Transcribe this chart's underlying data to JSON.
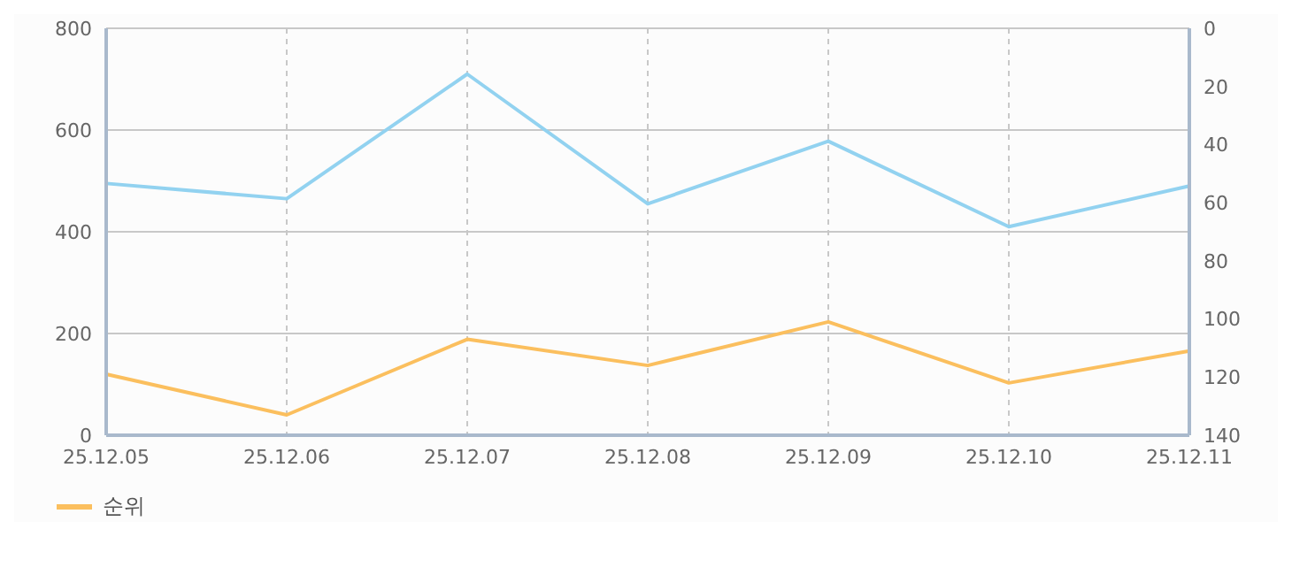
{
  "chart_data": {
    "type": "line",
    "categories": [
      "25.12.05",
      "25.12.06",
      "25.12.07",
      "25.12.08",
      "25.12.09",
      "25.12.10",
      "25.12.11"
    ],
    "series": [
      {
        "color": "#92d2f0",
        "values": [
          495,
          465,
          710,
          455,
          578,
          410,
          490
        ]
      },
      {
        "name": "순위",
        "color": "#fbbf5e",
        "axis": "y2",
        "values": [
          119,
          133,
          107,
          116,
          101,
          122,
          111
        ]
      }
    ],
    "ylim": [
      0,
      800
    ],
    "yticks": [
      0,
      200,
      400,
      600,
      800
    ],
    "y2lim": [
      140,
      0
    ],
    "y2ticks": [
      0,
      20,
      40,
      60,
      80,
      100,
      120,
      140
    ],
    "grid": true,
    "legend": "bottom left",
    "marker": "none",
    "line_style": "solid"
  }
}
